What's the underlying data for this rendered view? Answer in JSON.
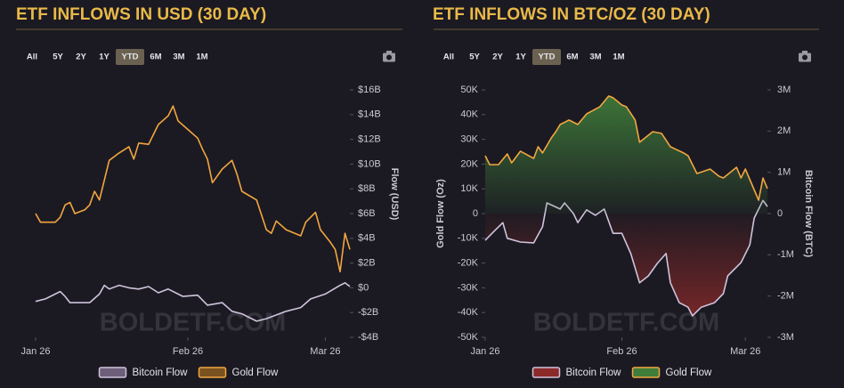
{
  "chart_data": [
    {
      "type": "line",
      "title": "ETF INFLOWS IN USD (30 DAY)",
      "range_buttons": [
        "All",
        "5Y",
        "2Y",
        "1Y",
        "YTD",
        "6M",
        "3M",
        "1M"
      ],
      "active_range": "YTD",
      "watermark": "BOLDETF.COM",
      "ylabel": "Flow (USD)",
      "yaxis_side": "right",
      "xlim": [
        0,
        64
      ],
      "xticks": [
        {
          "value": 0,
          "label": "Jan 26"
        },
        {
          "value": 31,
          "label": "Feb 26"
        },
        {
          "value": 59,
          "label": "Mar 26"
        }
      ],
      "ylim": [
        -4,
        16
      ],
      "yticks": [
        {
          "value": 16,
          "label": "$16B"
        },
        {
          "value": 14,
          "label": "$14B"
        },
        {
          "value": 12,
          "label": "$12B"
        },
        {
          "value": 10,
          "label": "$10B"
        },
        {
          "value": 8,
          "label": "$8B"
        },
        {
          "value": 6,
          "label": "$6B"
        },
        {
          "value": 4,
          "label": "$4B"
        },
        {
          "value": 2,
          "label": "$2B"
        },
        {
          "value": 0,
          "label": "$0"
        },
        {
          "value": -2,
          "label": "-$2B"
        },
        {
          "value": -4,
          "label": "-$4B"
        }
      ],
      "area": false,
      "series": [
        {
          "name": "Bitcoin Flow",
          "color": "#cfc3dc",
          "fill": "#6d5f7a",
          "x": [
            0,
            2,
            4,
            5,
            6,
            7,
            11,
            13,
            14,
            15,
            17,
            19,
            21,
            23,
            25,
            27,
            30,
            33,
            35,
            38,
            40,
            42,
            45,
            47,
            51,
            54,
            56,
            59,
            62,
            63,
            64
          ],
          "values": [
            -1.1,
            -0.9,
            -0.5,
            -0.3,
            -0.7,
            -1.2,
            -1.2,
            -0.5,
            0.2,
            -0.1,
            0.2,
            0,
            -0.1,
            0.1,
            -0.4,
            -0.1,
            -0.7,
            -0.6,
            -1.4,
            -1.2,
            -1.9,
            -2.1,
            -2.7,
            -2.5,
            -1.9,
            -1.6,
            -0.9,
            -0.5,
            0.2,
            0.4,
            0.1
          ]
        },
        {
          "name": "Gold Flow",
          "color": "#f2a640",
          "fill": "#7a5220",
          "x": [
            0,
            1,
            4,
            5,
            6,
            7,
            8,
            10,
            11,
            12,
            13,
            15,
            17,
            19,
            20,
            21,
            23,
            25,
            27,
            28,
            29,
            31,
            33,
            34,
            35,
            36,
            38,
            40,
            41,
            42,
            45,
            47,
            48,
            49,
            51,
            54,
            55,
            57,
            58,
            60,
            61,
            62,
            63,
            64
          ],
          "values": [
            6.0,
            5.3,
            5.3,
            5.7,
            6.7,
            6.9,
            6.0,
            6.3,
            6.7,
            7.8,
            7.1,
            10.3,
            10.9,
            11.4,
            10.4,
            11.7,
            11.6,
            13.2,
            13.9,
            14.7,
            13.5,
            12.8,
            12.1,
            11.2,
            10.4,
            8.5,
            9.6,
            10.3,
            9.2,
            7.8,
            7.1,
            4.7,
            4.4,
            5.4,
            4.7,
            4.2,
            5.3,
            6.1,
            4.7,
            3.7,
            3.1,
            1.3,
            4.4,
            3.1
          ]
        }
      ]
    },
    {
      "type": "line",
      "title": "ETF INFLOWS IN BTC/OZ (30 DAY)",
      "range_buttons": [
        "All",
        "5Y",
        "2Y",
        "1Y",
        "YTD",
        "6M",
        "3M",
        "1M"
      ],
      "active_range": "YTD",
      "watermark": "BOLDETF.COM",
      "ylabel": "Gold Flow (Oz)",
      "y2label": "Bitcoin Flow (BTC)",
      "yaxis_side": "left",
      "xlim": [
        0,
        64
      ],
      "xticks": [
        {
          "value": 0,
          "label": "Jan 26"
        },
        {
          "value": 31,
          "label": "Feb 26"
        },
        {
          "value": 59,
          "label": "Mar 26"
        }
      ],
      "ylim": [
        -50000,
        50000
      ],
      "yticks": [
        {
          "value": 50000,
          "label": "50K"
        },
        {
          "value": 40000,
          "label": "40K"
        },
        {
          "value": 30000,
          "label": "30K"
        },
        {
          "value": 20000,
          "label": "20K"
        },
        {
          "value": 10000,
          "label": "10K"
        },
        0,
        {
          "value": -10000,
          "label": "-10K"
        },
        {
          "value": -20000,
          "label": "-20K"
        },
        {
          "value": -30000,
          "label": "-30K"
        },
        {
          "value": -40000,
          "label": "-40K"
        },
        {
          "value": -50000,
          "label": "-50K"
        }
      ],
      "y2lim": [
        -3000000,
        3000000
      ],
      "y2ticks": [
        {
          "value": 3000000,
          "label": "3M"
        },
        {
          "value": 2000000,
          "label": "2M"
        },
        {
          "value": 1000000,
          "label": "1M"
        },
        0,
        {
          "value": -1000000,
          "label": "-1M"
        },
        {
          "value": -2000000,
          "label": "-2M"
        },
        {
          "value": -3000000,
          "label": "-3M"
        }
      ],
      "area": true,
      "series": [
        {
          "name": "Bitcoin Flow",
          "color": "#cfc3dc",
          "fill": "#8c2a2a",
          "axis": "y2",
          "x": [
            0,
            2,
            4,
            5,
            8,
            11,
            13,
            14,
            17,
            18,
            20,
            21,
            23,
            25,
            27,
            29,
            31,
            33,
            35,
            37,
            39,
            41,
            42,
            44,
            46,
            47,
            49,
            52,
            54,
            55,
            58,
            60,
            61,
            63,
            64
          ],
          "values": [
            -650000,
            -430000,
            -220000,
            -600000,
            -690000,
            -710000,
            -320000,
            260000,
            110000,
            260000,
            0,
            -220000,
            90000,
            -40000,
            110000,
            -480000,
            -480000,
            -970000,
            -1680000,
            -1510000,
            -1210000,
            -970000,
            -1680000,
            -2160000,
            -2270000,
            -2480000,
            -2270000,
            -2160000,
            -1940000,
            -1510000,
            -1190000,
            -760000,
            -110000,
            320000,
            170000
          ]
        },
        {
          "name": "Gold Flow",
          "color": "#f2a640",
          "fill": "#3f7d3a",
          "x": [
            0,
            1,
            3,
            5,
            6,
            8,
            11,
            12,
            13,
            15,
            16,
            17,
            19,
            21,
            23,
            26,
            28,
            29,
            31,
            32,
            34,
            35,
            38,
            40,
            42,
            45,
            46,
            48,
            51,
            53,
            54,
            57,
            58,
            59,
            62,
            63,
            64
          ],
          "values": [
            23400,
            19800,
            19800,
            24100,
            20500,
            25200,
            22300,
            27000,
            24500,
            30600,
            33100,
            36000,
            37800,
            36000,
            40300,
            43200,
            47500,
            46800,
            43900,
            43200,
            37800,
            28800,
            33100,
            32400,
            27000,
            24500,
            23400,
            16200,
            18000,
            15100,
            14400,
            18700,
            14400,
            18000,
            5400,
            14400,
            10100
          ]
        }
      ]
    }
  ]
}
